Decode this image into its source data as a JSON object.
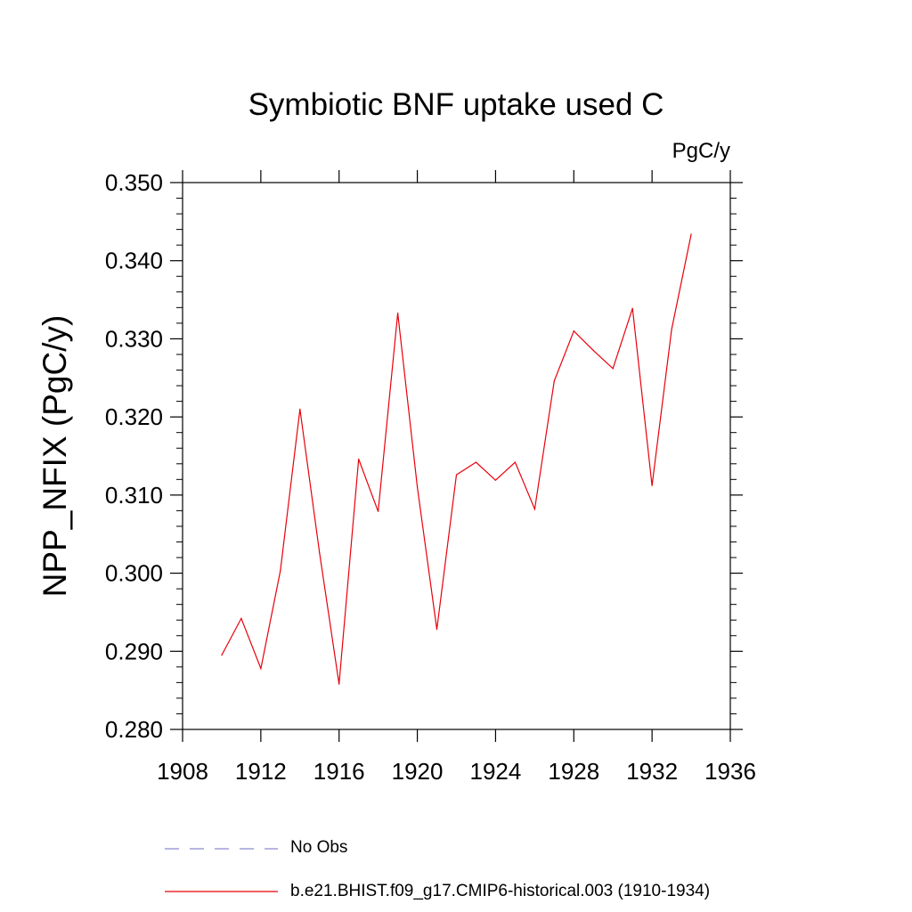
{
  "chart_data": {
    "type": "line",
    "title": "Symbiotic BNF uptake used C",
    "units_label": "PgC/y",
    "ylabel": "NPP_NFIX  (PgC/y)",
    "xlabel": "",
    "xlim": [
      1908,
      1936
    ],
    "ylim": [
      0.28,
      0.35
    ],
    "x_ticks": [
      1908,
      1912,
      1916,
      1920,
      1924,
      1928,
      1932,
      1936
    ],
    "x_tick_labels": [
      "1908",
      "1912",
      "1916",
      "1920",
      "1924",
      "1928",
      "1932",
      "1936"
    ],
    "y_ticks": [
      0.28,
      0.29,
      0.3,
      0.31,
      0.32,
      0.33,
      0.34,
      0.35
    ],
    "y_tick_labels": [
      "0.280",
      "0.290",
      "0.300",
      "0.310",
      "0.320",
      "0.330",
      "0.340",
      "0.350"
    ],
    "grid": false,
    "series": [
      {
        "name": "b.e21.BHIST.f09_g17.CMIP6-historical.003 (1910-1934)",
        "color": "#e8000b",
        "style": "solid",
        "x": [
          1910,
          1911,
          1912,
          1913,
          1914,
          1915,
          1916,
          1917,
          1918,
          1919,
          1920,
          1921,
          1922,
          1923,
          1924,
          1925,
          1926,
          1927,
          1928,
          1929,
          1930,
          1931,
          1932,
          1933,
          1934
        ],
        "values": [
          0.2895,
          0.2942,
          0.2878,
          0.3003,
          0.321,
          0.3026,
          0.2858,
          0.3146,
          0.3079,
          0.3333,
          0.311,
          0.2928,
          0.3126,
          0.3142,
          0.3119,
          0.3142,
          0.3082,
          0.3246,
          0.331,
          0.3285,
          0.3262,
          0.3339,
          0.3112,
          0.3312,
          0.3434
        ]
      }
    ],
    "legend": [
      {
        "label": "No Obs",
        "color": "#8a8ad0",
        "style": "dashed"
      },
      {
        "label": "b.e21.BHIST.f09_g17.CMIP6-historical.003 (1910-1934)",
        "color": "#e8000b",
        "style": "solid"
      }
    ]
  }
}
